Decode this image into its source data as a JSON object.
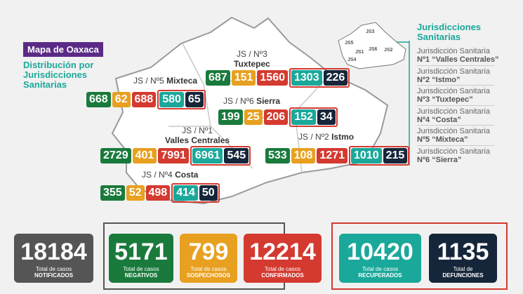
{
  "title": "Mapa de Oaxaca",
  "subtitle": [
    "Distribución por",
    "Jurisdicciones",
    "Sanitarias"
  ],
  "regions": [
    {
      "code": "JS / Nº3",
      "name": "Tuxtepec",
      "values": [
        687,
        151,
        1560,
        1303,
        226
      ]
    },
    {
      "code": "JS / Nº5",
      "name": "Mixteca",
      "values": [
        668,
        62,
        688,
        580,
        65
      ]
    },
    {
      "code": "JS / Nº6",
      "name": "Sierra",
      "values": [
        199,
        25,
        206,
        152,
        34
      ]
    },
    {
      "code": "JS / Nº1",
      "name": "Valles Centrales",
      "values": [
        2729,
        401,
        7991,
        6961,
        545
      ]
    },
    {
      "code": "JS / Nº2",
      "name": "Istmo",
      "values": [
        533,
        108,
        1271,
        1010,
        215
      ]
    },
    {
      "code": "JS / Nº4",
      "name": "Costa",
      "values": [
        355,
        52,
        498,
        414,
        50
      ]
    }
  ],
  "mini_map": {
    "labels": [
      "JS3",
      "JS5",
      "JS1",
      "JS6",
      "JS2",
      "JS4"
    ]
  },
  "legend": {
    "title": [
      "Jurisdicciones",
      "Sanitarias"
    ],
    "items": [
      {
        "line1": "Jurisdicción Sanitaria",
        "line2": "Nº1 “Valles Centrales”"
      },
      {
        "line1": "Jurisdicción Sanitaria",
        "line2": "Nº2 “Istmo”"
      },
      {
        "line1": "Jurisdicción Sanitaria",
        "line2": "Nº3 “Tuxtepec”"
      },
      {
        "line1": "Jurisdicción Sanitaria",
        "line2": "Nº4 “Costa”"
      },
      {
        "line1": "Jurisdicción Sanitaria",
        "line2": "Nº5 “Mixteca”"
      },
      {
        "line1": "Jurisdicción Sanitaria",
        "line2": "Nº6 “Sierra”"
      }
    ]
  },
  "totals": [
    {
      "value": 18184,
      "label1": "Total de casos",
      "label2": "NOTIFICADOS"
    },
    {
      "value": 5171,
      "label1": "Total de casos",
      "label2": "NEGATIVOS"
    },
    {
      "value": 799,
      "label1": "Total de casos",
      "label2": "SOSPECHOSOS"
    },
    {
      "value": 12214,
      "label1": "Total de casos",
      "label2": "CONFIRMADOS"
    },
    {
      "value": 10420,
      "label1": "Total de casos",
      "label2": "RECUPERADOS"
    },
    {
      "value": 1135,
      "label1": "Total de",
      "label2": "DEFUNCIONES"
    }
  ]
}
